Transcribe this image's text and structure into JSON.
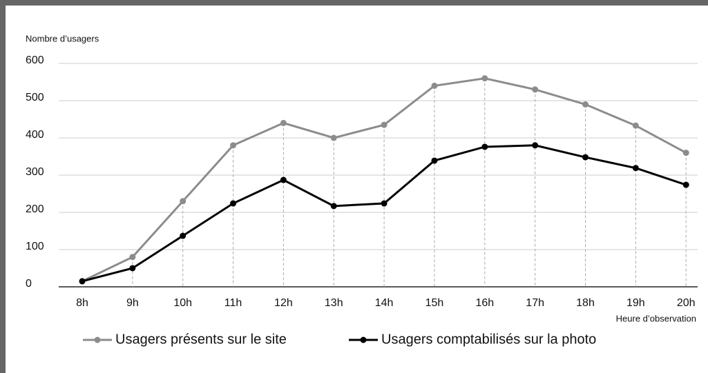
{
  "chart_data": {
    "type": "line",
    "ylabel": "Nombre d’usagers",
    "xlabel": "Heure d’observation",
    "categories": [
      "8h",
      "9h",
      "10h",
      "11h",
      "12h",
      "13h",
      "14h",
      "15h",
      "16h",
      "17h",
      "18h",
      "19h",
      "20h"
    ],
    "series": [
      {
        "name": "Usagers présents sur le site",
        "color": "#8c8c8c",
        "values": [
          15,
          80,
          230,
          380,
          440,
          400,
          435,
          540,
          560,
          530,
          490,
          433,
          360
        ]
      },
      {
        "name": "Usagers comptabilisés sur la photo",
        "color": "#000000",
        "values": [
          15,
          50,
          137,
          224,
          287,
          217,
          224,
          339,
          376,
          380,
          348,
          319,
          274
        ]
      }
    ],
    "ylim": [
      0,
      600
    ],
    "yticks": [
      0,
      100,
      200,
      300,
      400,
      500,
      600
    ],
    "grid": true
  }
}
